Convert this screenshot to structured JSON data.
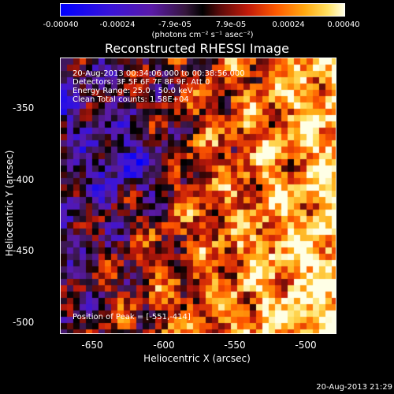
{
  "colorbar": {
    "ticks": [
      "-0.00040",
      "-0.00024",
      "-7.9e-05",
      "7.9e-05",
      "0.00024",
      "0.00040"
    ],
    "units": "(photons cm⁻² s⁻¹ asec⁻²)",
    "range": [
      -0.0004,
      0.0004
    ]
  },
  "chart_data": {
    "type": "heatmap",
    "title": "Reconstructed RHESSI Image",
    "xlabel": "Heliocentric X (arcsec)",
    "ylabel": "Heliocentric Y (arcsec)",
    "xlim": [
      -670,
      -478
    ],
    "ylim": [
      -508,
      -316
    ],
    "x_ticks": [
      "-650",
      "-600",
      "-550",
      "-500"
    ],
    "y_ticks": [
      "-350",
      "-400",
      "-450",
      "-500"
    ],
    "peak_position": [
      -551,
      -414
    ]
  },
  "info": {
    "line1": "20-Aug-2013 00:34:06.000 to 00:38:56.000",
    "line2": "Detectors: 3F 5F 6F 7F 8F 9F, Att 0",
    "line3": "Energy Range: 25.0 - 50.0 keV",
    "line4": "Clean     Total counts: 1.58E+04",
    "peak": "Position of Peak = [-551,-414]"
  },
  "timestamp": "20-Aug-2013 21:29"
}
